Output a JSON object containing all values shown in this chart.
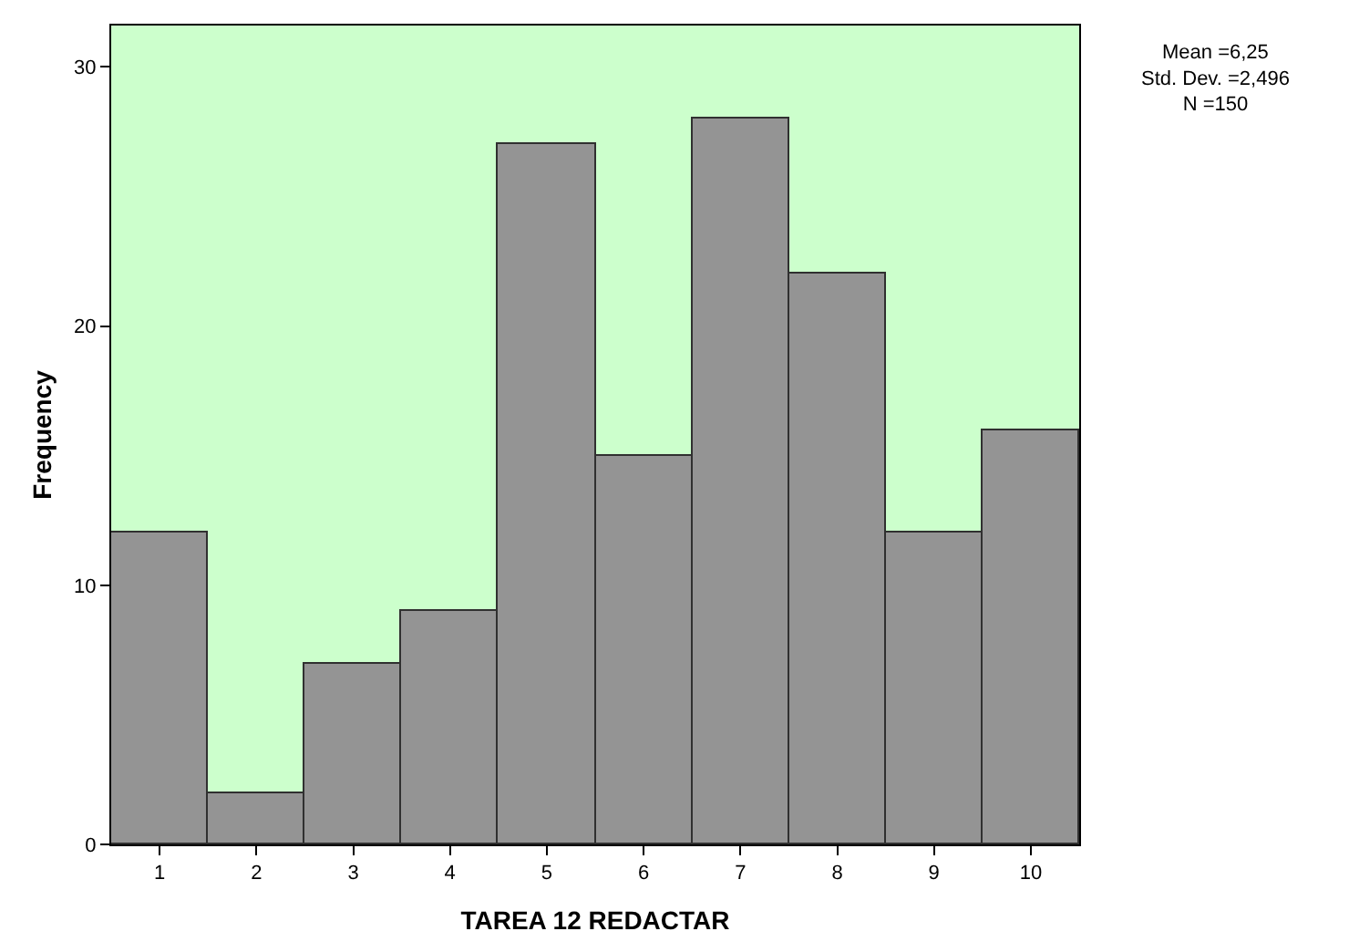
{
  "chart_data": {
    "type": "histogram",
    "xlabel": "TAREA 12 REDACTAR",
    "ylabel": "Frequency",
    "bins": [
      0.5,
      1.5,
      2.5,
      3.5,
      4.5,
      5.5,
      6.5,
      7.5,
      8.5,
      9.5,
      10.5
    ],
    "values": [
      12,
      2,
      7,
      9,
      27,
      15,
      28,
      22,
      12,
      16
    ],
    "color": "#949494",
    "xlim": [
      0.5,
      10.5
    ],
    "xticks": [
      1,
      2,
      3,
      4,
      5,
      6,
      7,
      8,
      9,
      10
    ],
    "ylim": [
      0,
      31.6
    ],
    "yticks": [
      0,
      10,
      20,
      30
    ],
    "grid": false,
    "annotations": [
      "Mean =6,25\nStd. Dev. =2,496\nN =150"
    ]
  }
}
